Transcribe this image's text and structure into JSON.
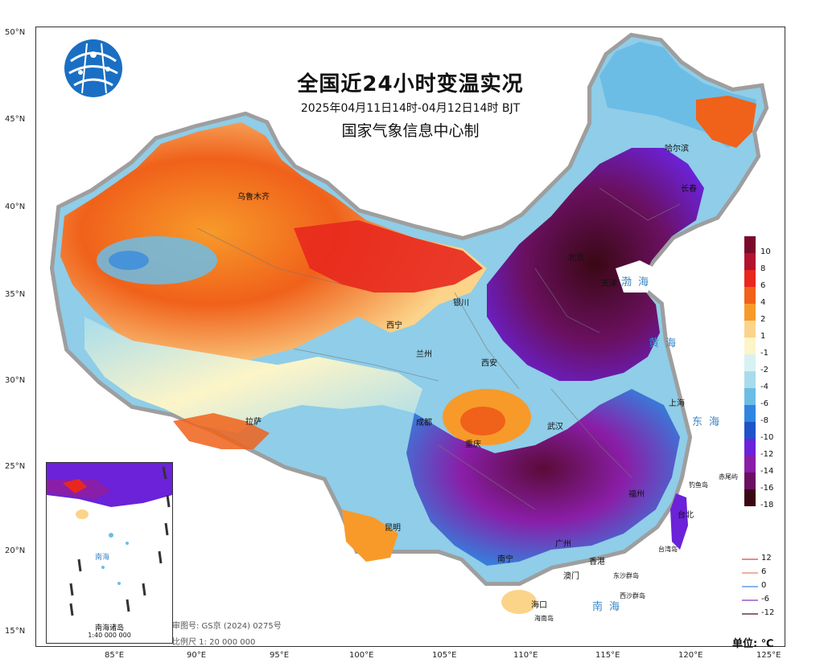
{
  "map": {
    "title": "全国近24小时变温实况",
    "subtitle": "2025年04月11日14时-04月12日14时 BJT",
    "agency": "国家气象信息中心制",
    "review_number": "审图号: GS京 (2024) 0275号",
    "scale": "比例尺 1: 20 000 000",
    "unit": "单位: ℃",
    "lat_labels": [
      "50°N",
      "45°N",
      "40°N",
      "35°N",
      "30°N",
      "25°N",
      "20°N",
      "15°N"
    ],
    "lon_labels": [
      "85°E",
      "90°E",
      "95°E",
      "100°E",
      "105°E",
      "110°E",
      "115°E",
      "120°E",
      "125°E"
    ],
    "legend": {
      "labels": [
        "10",
        "8",
        "6",
        "4",
        "2",
        "1",
        "-1",
        "-2",
        "-4",
        "-6",
        "-8",
        "-10",
        "-12",
        "-14",
        "-16",
        "-18"
      ],
      "colors": [
        "#7a0a2a",
        "#b3122e",
        "#e8281e",
        "#f0611a",
        "#f79a2a",
        "#fbd48a",
        "#fdf5c8",
        "#d8f1f4",
        "#a8dcec",
        "#6cbde6",
        "#2f86e0",
        "#2053c8",
        "#6b22d8",
        "#8a1ea8",
        "#6a1060",
        "#3a0814"
      ]
    },
    "line_legend": [
      {
        "label": "12",
        "color": "#e88a8a"
      },
      {
        "label": "6",
        "color": "#f0b0a0"
      },
      {
        "label": "0",
        "color": "#8ab4e8"
      },
      {
        "label": "-6",
        "color": "#b680d8"
      },
      {
        "label": "-12",
        "color": "#8a6a78"
      }
    ],
    "cities": {
      "urumqi": "乌鲁木齐",
      "harbin": "哈尔滨",
      "changchun": "长春",
      "beijing": "北京",
      "tianjin": "天津",
      "yinchuan": "银川",
      "xining": "西宁",
      "lanzhou": "兰州",
      "xian": "西安",
      "lhasa": "拉萨",
      "chengdu": "成都",
      "chongqing": "重庆",
      "wuhan": "武汉",
      "shanghai": "上海",
      "kunming": "昆明",
      "nanning": "南宁",
      "guangzhou": "广州",
      "hongkong": "香港",
      "macau": "澳门",
      "haikou": "海口",
      "taibei": "台北",
      "fuzhou": "福州"
    },
    "seas": {
      "bohai": "渤海",
      "huanghai": "黄海",
      "donghai": "东海",
      "nanhai": "南海"
    },
    "islands": {
      "diaoyu": "钓鱼岛",
      "chiwei": "赤尾屿",
      "taiwan": "台湾岛",
      "dongsha": "东沙群岛",
      "xisha": "西沙群岛",
      "hainan": "海南岛"
    },
    "inset": {
      "title": "南海诸岛",
      "scale": "1:40 000 000",
      "sea": "南海"
    }
  }
}
